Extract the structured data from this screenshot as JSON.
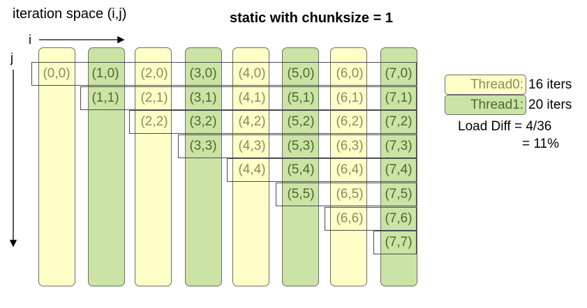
{
  "title_space": "iteration space (i,j)",
  "title_schedule": "static with chunksize = 1",
  "axis_i": "i",
  "axis_j": "j",
  "colors": {
    "thread0_fill": "#ffffc8",
    "thread1_fill": "#cce3a6",
    "thread0_text": "#8c8c5a",
    "thread1_text": "#4a6b2a",
    "outline": "#4a4a4a"
  },
  "columns": [
    {
      "i": 0,
      "thread": 0,
      "cells": [
        "(0,0)"
      ]
    },
    {
      "i": 1,
      "thread": 1,
      "cells": [
        "(1,0)",
        "(1,1)"
      ]
    },
    {
      "i": 2,
      "thread": 0,
      "cells": [
        "(2,0)",
        "(2,1)",
        "(2,2)"
      ]
    },
    {
      "i": 3,
      "thread": 1,
      "cells": [
        "(3,0)",
        "(3,1)",
        "(3,2)",
        "(3,3)"
      ]
    },
    {
      "i": 4,
      "thread": 0,
      "cells": [
        "(4,0)",
        "(4,1)",
        "(4,2)",
        "(4,3)",
        "(4,4)"
      ]
    },
    {
      "i": 5,
      "thread": 1,
      "cells": [
        "(5,0)",
        "(5,1)",
        "(5,2)",
        "(5,3)",
        "(5,4)",
        "(5,5)"
      ]
    },
    {
      "i": 6,
      "thread": 0,
      "cells": [
        "(6,0)",
        "(6,1)",
        "(6,2)",
        "(6,3)",
        "(6,4)",
        "(6,5)",
        "(6,6)"
      ]
    },
    {
      "i": 7,
      "thread": 1,
      "cells": [
        "(7,0)",
        "(7,1)",
        "(7,2)",
        "(7,3)",
        "(7,4)",
        "(7,5)",
        "(7,6)",
        "(7,7)"
      ]
    }
  ],
  "legend": [
    {
      "label": "Thread0:",
      "count": "16 iters",
      "thread": 0
    },
    {
      "label": "Thread1:",
      "count": "20 iters",
      "thread": 1
    }
  ],
  "load_diff": "Load Diff = 4/36",
  "load_pct": "= 11%"
}
